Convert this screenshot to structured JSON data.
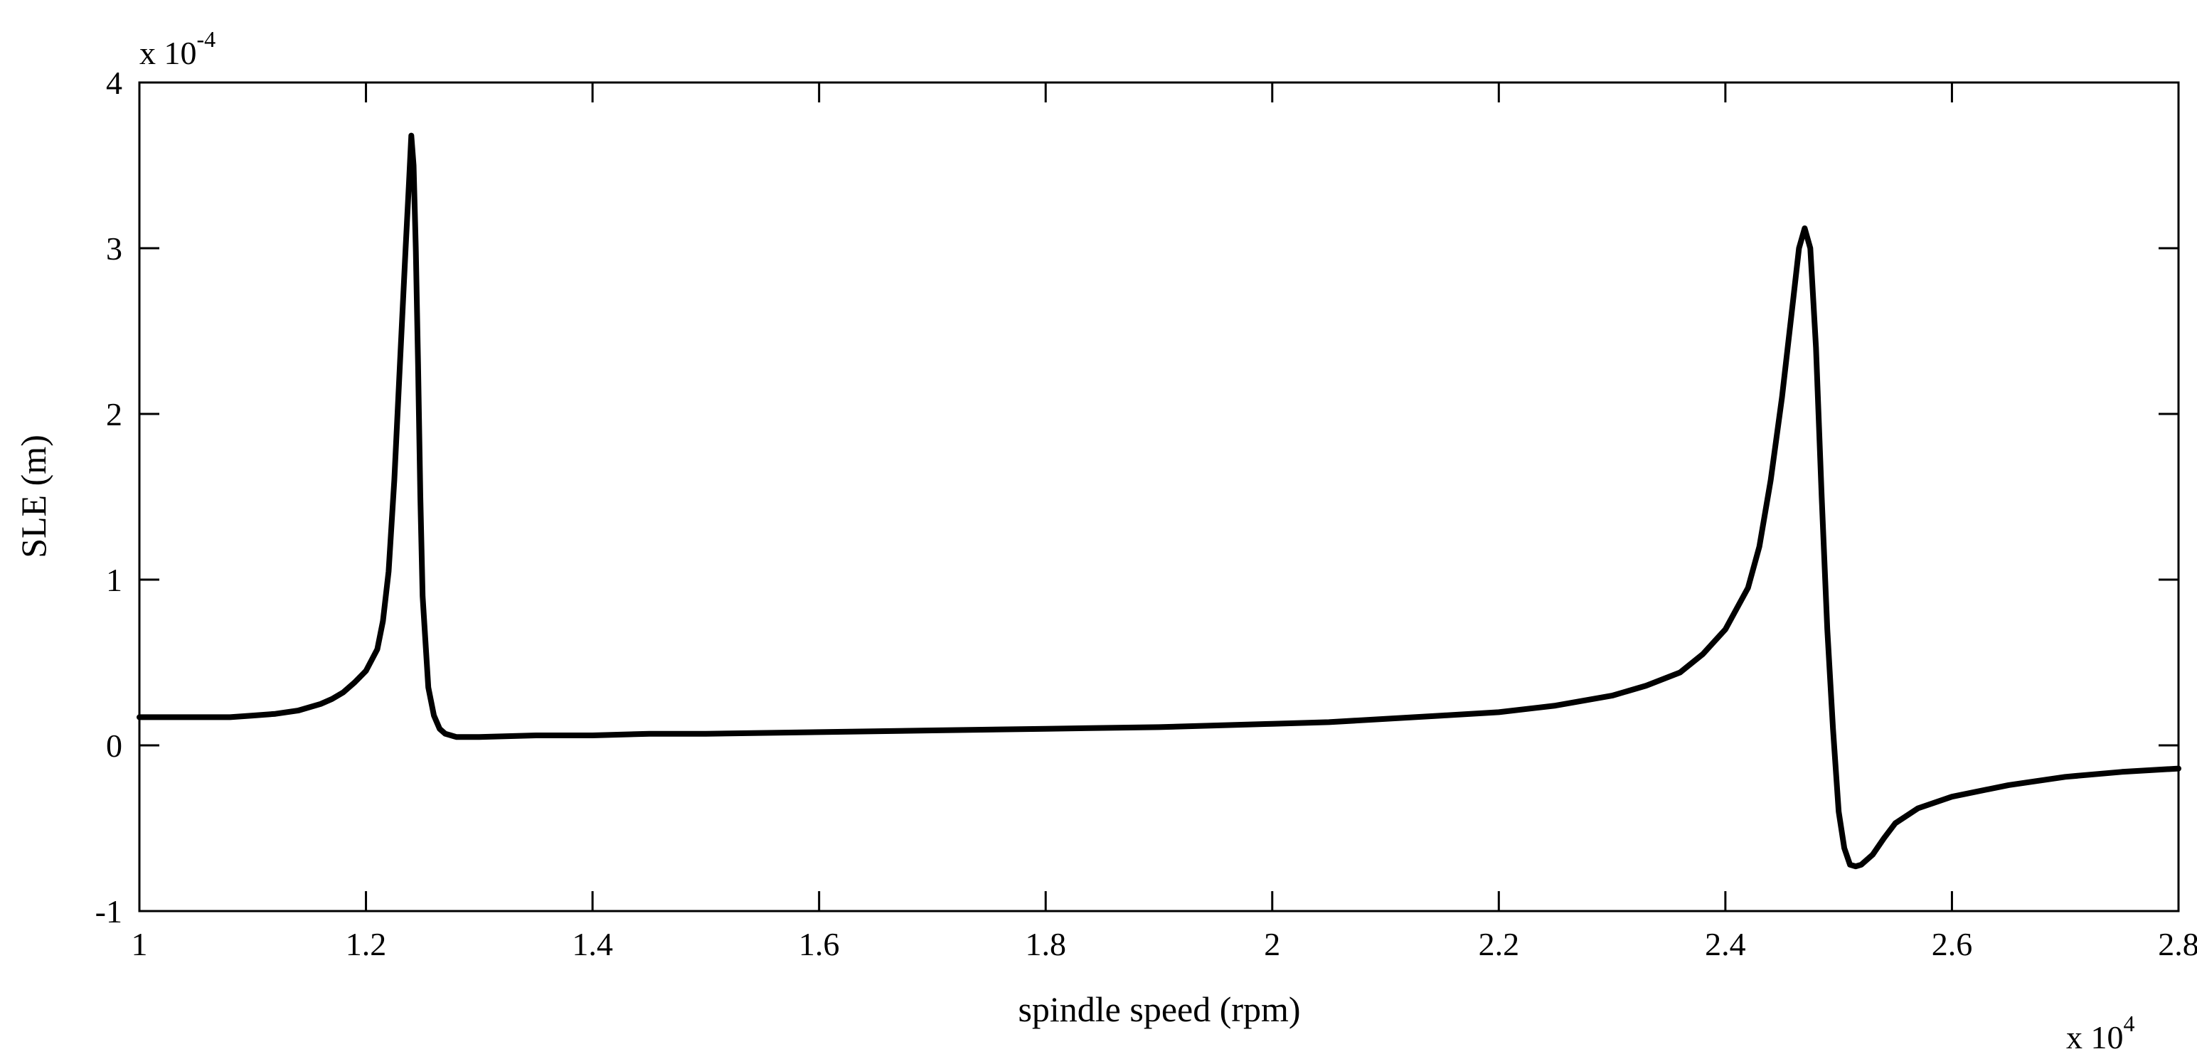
{
  "chart_data": {
    "type": "line",
    "xlabel": "spindle speed (rpm)",
    "ylabel": "SLE (m)",
    "x_multiplier_label": "x 10",
    "x_multiplier_exp": "4",
    "y_multiplier_label": "x 10",
    "y_multiplier_exp": "-4",
    "xlim": [
      1.0,
      2.8
    ],
    "ylim": [
      -1,
      4
    ],
    "x_ticks": [
      "1",
      "1.2",
      "1.4",
      "1.6",
      "1.8",
      "2",
      "2.2",
      "2.4",
      "2.6",
      "2.8"
    ],
    "y_ticks": [
      "-1",
      "0",
      "1",
      "2",
      "3",
      "4"
    ],
    "grid": false,
    "line_color": "#000000",
    "series": [
      {
        "x": [
          1.0,
          1.04,
          1.08,
          1.1,
          1.12,
          1.14,
          1.16,
          1.17,
          1.18,
          1.19,
          1.2,
          1.21,
          1.215,
          1.22,
          1.225,
          1.23,
          1.235,
          1.238,
          1.24,
          1.242,
          1.244,
          1.246,
          1.248,
          1.25,
          1.255,
          1.26,
          1.265,
          1.27,
          1.28,
          1.29,
          1.3,
          1.35,
          1.4,
          1.45,
          1.5,
          1.6,
          1.7,
          1.8,
          1.9,
          2.0,
          2.05,
          2.1,
          2.15,
          2.2,
          2.25,
          2.3,
          2.33,
          2.36,
          2.38,
          2.4,
          2.42,
          2.43,
          2.44,
          2.45,
          2.46,
          2.465,
          2.47,
          2.475,
          2.48,
          2.485,
          2.49,
          2.495,
          2.5,
          2.505,
          2.51,
          2.515,
          2.52,
          2.53,
          2.54,
          2.55,
          2.57,
          2.6,
          2.65,
          2.7,
          2.75,
          2.8
        ],
        "y": [
          0.17,
          0.17,
          0.17,
          0.18,
          0.19,
          0.21,
          0.25,
          0.28,
          0.32,
          0.38,
          0.45,
          0.58,
          0.75,
          1.05,
          1.6,
          2.3,
          3.0,
          3.4,
          3.68,
          3.5,
          3.0,
          2.3,
          1.5,
          0.9,
          0.35,
          0.18,
          0.1,
          0.07,
          0.05,
          0.05,
          0.05,
          0.06,
          0.06,
          0.07,
          0.07,
          0.08,
          0.09,
          0.1,
          0.11,
          0.13,
          0.14,
          0.16,
          0.18,
          0.2,
          0.24,
          0.3,
          0.36,
          0.44,
          0.55,
          0.7,
          0.95,
          1.2,
          1.6,
          2.1,
          2.7,
          3.0,
          3.12,
          3.0,
          2.4,
          1.5,
          0.7,
          0.1,
          -0.4,
          -0.62,
          -0.72,
          -0.73,
          -0.72,
          -0.66,
          -0.56,
          -0.47,
          -0.38,
          -0.31,
          -0.24,
          -0.19,
          -0.16,
          -0.14
        ]
      }
    ]
  }
}
